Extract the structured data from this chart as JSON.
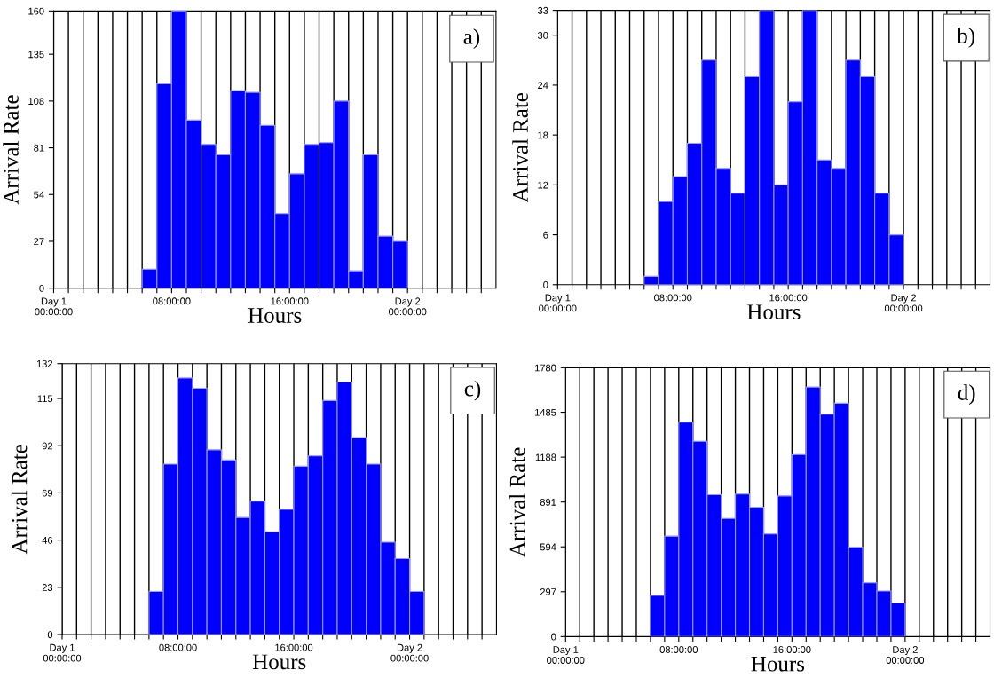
{
  "chart_data": [
    {
      "type": "histogram",
      "xlabel": "Hours",
      "ylabel": "Arrival Rate",
      "annotations": [
        "a)"
      ],
      "color": "#0000ff",
      "grid": "x",
      "bins": [
        6,
        7,
        8,
        9,
        10,
        11,
        12,
        13,
        14,
        15,
        16,
        17,
        18,
        19,
        20,
        21,
        22,
        23,
        24
      ],
      "values": [
        11,
        118,
        160,
        97,
        83,
        77,
        114,
        113,
        94,
        43,
        66,
        83,
        84,
        108,
        10,
        77,
        30,
        27
      ],
      "xlim": [
        0,
        30
      ],
      "ylim": [
        0,
        160
      ],
      "yticks": [
        0,
        27,
        54,
        81,
        108,
        135,
        160
      ],
      "xticks": [
        {
          "value": 0,
          "label": "Day 1\n00:00:00"
        },
        {
          "value": 1,
          "label": null
        },
        {
          "value": 2,
          "label": null
        },
        {
          "value": 3,
          "label": null
        },
        {
          "value": 4,
          "label": null
        },
        {
          "value": 5,
          "label": null
        },
        {
          "value": 6,
          "label": null
        },
        {
          "value": 7,
          "label": null
        },
        {
          "value": 8,
          "label": "08:00:00"
        },
        {
          "value": 9,
          "label": null
        },
        {
          "value": 10,
          "label": null
        },
        {
          "value": 11,
          "label": null
        },
        {
          "value": 12,
          "label": null
        },
        {
          "value": 13,
          "label": null
        },
        {
          "value": 14,
          "label": null
        },
        {
          "value": 15,
          "label": null
        },
        {
          "value": 16,
          "label": "16:00:00"
        },
        {
          "value": 17,
          "label": null
        },
        {
          "value": 18,
          "label": null
        },
        {
          "value": 19,
          "label": null
        },
        {
          "value": 20,
          "label": null
        },
        {
          "value": 21,
          "label": null
        },
        {
          "value": 22,
          "label": null
        },
        {
          "value": 23,
          "label": null
        },
        {
          "value": 24,
          "label": "Day 2\n00:00:00"
        },
        {
          "value": 25,
          "label": null
        },
        {
          "value": 26,
          "label": null
        },
        {
          "value": 27,
          "label": null
        },
        {
          "value": 28,
          "label": null
        },
        {
          "value": 29,
          "label": null
        }
      ]
    },
    {
      "type": "histogram",
      "xlabel": "Hours",
      "ylabel": "Arrival Rate",
      "annotations": [
        "b)"
      ],
      "color": "#0000ff",
      "grid": "x",
      "bins": [
        6,
        7,
        8,
        9,
        10,
        11,
        12,
        13,
        14,
        15,
        16,
        17,
        18,
        19,
        20,
        21,
        22,
        23,
        24
      ],
      "values": [
        1,
        10,
        13,
        17,
        27,
        14,
        11,
        25,
        33,
        12,
        22,
        33,
        15,
        14,
        27,
        25,
        11,
        6
      ],
      "xlim": [
        0,
        30
      ],
      "ylim": [
        0,
        33
      ],
      "yticks": [
        0,
        6,
        12,
        18,
        24,
        30,
        33
      ],
      "xticks": [
        {
          "value": 0,
          "label": "Day 1\n00:00:00"
        },
        {
          "value": 1,
          "label": null
        },
        {
          "value": 2,
          "label": null
        },
        {
          "value": 3,
          "label": null
        },
        {
          "value": 4,
          "label": null
        },
        {
          "value": 5,
          "label": null
        },
        {
          "value": 6,
          "label": null
        },
        {
          "value": 7,
          "label": null
        },
        {
          "value": 8,
          "label": "08:00:00"
        },
        {
          "value": 9,
          "label": null
        },
        {
          "value": 10,
          "label": null
        },
        {
          "value": 11,
          "label": null
        },
        {
          "value": 12,
          "label": null
        },
        {
          "value": 13,
          "label": null
        },
        {
          "value": 14,
          "label": null
        },
        {
          "value": 15,
          "label": null
        },
        {
          "value": 16,
          "label": "16:00:00"
        },
        {
          "value": 17,
          "label": null
        },
        {
          "value": 18,
          "label": null
        },
        {
          "value": 19,
          "label": null
        },
        {
          "value": 20,
          "label": null
        },
        {
          "value": 21,
          "label": null
        },
        {
          "value": 22,
          "label": null
        },
        {
          "value": 23,
          "label": null
        },
        {
          "value": 24,
          "label": "Day 2\n00:00:00"
        },
        {
          "value": 25,
          "label": null
        },
        {
          "value": 26,
          "label": null
        },
        {
          "value": 27,
          "label": null
        },
        {
          "value": 28,
          "label": null
        },
        {
          "value": 29,
          "label": null
        }
      ]
    },
    {
      "type": "histogram",
      "xlabel": "Hours",
      "ylabel": "Arrival Rate",
      "annotations": [
        "c)"
      ],
      "color": "#0000ff",
      "grid": "x",
      "bins": [
        6,
        7,
        8,
        9,
        10,
        11,
        12,
        13,
        14,
        15,
        16,
        17,
        18,
        19,
        20,
        21,
        22,
        23,
        24,
        25
      ],
      "values": [
        21,
        83,
        125,
        120,
        90,
        85,
        57,
        65,
        50,
        61,
        82,
        87,
        114,
        123,
        96,
        83,
        45,
        37,
        21
      ],
      "xlim": [
        0,
        30
      ],
      "ylim": [
        0,
        132
      ],
      "yticks": [
        0,
        23,
        46,
        69,
        92,
        115,
        132
      ],
      "xticks": [
        {
          "value": 0,
          "label": "Day 1\n00:00:00"
        },
        {
          "value": 1,
          "label": null
        },
        {
          "value": 2,
          "label": null
        },
        {
          "value": 3,
          "label": null
        },
        {
          "value": 4,
          "label": null
        },
        {
          "value": 5,
          "label": null
        },
        {
          "value": 6,
          "label": null
        },
        {
          "value": 7,
          "label": null
        },
        {
          "value": 8,
          "label": "08:00:00"
        },
        {
          "value": 9,
          "label": null
        },
        {
          "value": 10,
          "label": null
        },
        {
          "value": 11,
          "label": null
        },
        {
          "value": 12,
          "label": null
        },
        {
          "value": 13,
          "label": null
        },
        {
          "value": 14,
          "label": null
        },
        {
          "value": 15,
          "label": null
        },
        {
          "value": 16,
          "label": "16:00:00"
        },
        {
          "value": 17,
          "label": null
        },
        {
          "value": 18,
          "label": null
        },
        {
          "value": 19,
          "label": null
        },
        {
          "value": 20,
          "label": null
        },
        {
          "value": 21,
          "label": null
        },
        {
          "value": 22,
          "label": null
        },
        {
          "value": 23,
          "label": null
        },
        {
          "value": 24,
          "label": "Day 2\n00:00:00"
        },
        {
          "value": 25,
          "label": null
        },
        {
          "value": 26,
          "label": null
        },
        {
          "value": 27,
          "label": null
        },
        {
          "value": 28,
          "label": null
        },
        {
          "value": 29,
          "label": null
        }
      ]
    },
    {
      "type": "histogram",
      "xlabel": "Hours",
      "ylabel": "Arrival Rate",
      "annotations": [
        "d)"
      ],
      "color": "#0000ff",
      "grid": "x",
      "bins": [
        6,
        7,
        8,
        9,
        10,
        11,
        12,
        13,
        14,
        15,
        16,
        17,
        18,
        19,
        20,
        21,
        22,
        23,
        24
      ],
      "values": [
        272,
        665,
        1419,
        1293,
        939,
        782,
        943,
        857,
        679,
        931,
        1205,
        1652,
        1472,
        1545,
        591,
        356,
        302,
        222
      ],
      "xlim": [
        0,
        30
      ],
      "ylim": [
        0,
        1780
      ],
      "yticks": [
        0,
        297,
        594,
        891,
        1188,
        1485,
        1780
      ],
      "xticks": [
        {
          "value": 0,
          "label": "Day 1\n00:00:00"
        },
        {
          "value": 1,
          "label": null
        },
        {
          "value": 2,
          "label": null
        },
        {
          "value": 3,
          "label": null
        },
        {
          "value": 4,
          "label": null
        },
        {
          "value": 5,
          "label": null
        },
        {
          "value": 6,
          "label": null
        },
        {
          "value": 7,
          "label": null
        },
        {
          "value": 8,
          "label": "08:00:00"
        },
        {
          "value": 9,
          "label": null
        },
        {
          "value": 10,
          "label": null
        },
        {
          "value": 11,
          "label": null
        },
        {
          "value": 12,
          "label": null
        },
        {
          "value": 13,
          "label": null
        },
        {
          "value": 14,
          "label": null
        },
        {
          "value": 15,
          "label": null
        },
        {
          "value": 16,
          "label": "16:00:00"
        },
        {
          "value": 17,
          "label": null
        },
        {
          "value": 18,
          "label": null
        },
        {
          "value": 19,
          "label": null
        },
        {
          "value": 20,
          "label": null
        },
        {
          "value": 21,
          "label": null
        },
        {
          "value": 22,
          "label": null
        },
        {
          "value": 23,
          "label": null
        },
        {
          "value": 24,
          "label": "Day 2\n00:00:00"
        },
        {
          "value": 25,
          "label": null
        },
        {
          "value": 26,
          "label": null
        },
        {
          "value": 27,
          "label": null
        },
        {
          "value": 28,
          "label": null
        },
        {
          "value": 29,
          "label": null
        }
      ]
    }
  ]
}
